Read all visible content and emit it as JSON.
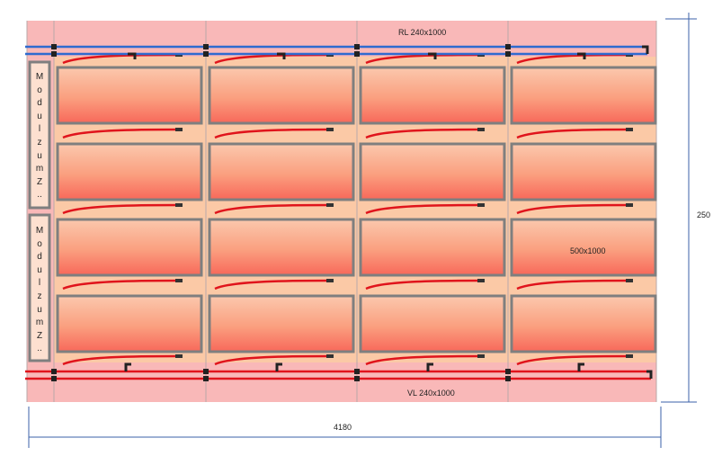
{
  "labels": {
    "return_line": "RL 240x1000",
    "supply_line": "VL 240x1000",
    "panel_size": "500x1000",
    "total_width": "4180",
    "total_height": "250",
    "side_module_text": "Modul zum Z..",
    "side_module_chars": [
      "M",
      "o",
      "d",
      "u",
      "l",
      "z",
      "u",
      "m",
      "Z",
      ".."
    ]
  },
  "grid": {
    "columns": 4,
    "rows": 4
  },
  "colors": {
    "background_band": "#f9b8b8",
    "panel_area": "#fbc9a6",
    "panel_top": "#fbc8ad",
    "panel_bottom": "#f8685a",
    "panel_frame": "#7f7f7f",
    "return_pipe": "#2f6bd0",
    "supply_pipe": "#e0141c",
    "dimension_line": "#3b62a8"
  }
}
